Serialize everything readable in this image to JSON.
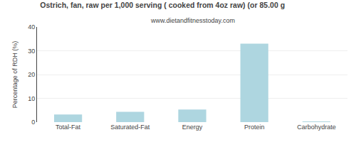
{
  "chart_data": {
    "type": "bar",
    "title": "Ostrich, fan, raw per 1,000 serving ( cooked from 4oz raw) (or 85.00 g",
    "subtitle": "www.dietandfitnesstoday.com",
    "categories": [
      "Total-Fat",
      "Saturated-Fat",
      "Energy",
      "Protein",
      "Carbohydrate"
    ],
    "values": [
      3.2,
      4.3,
      5.3,
      33.0,
      0.1
    ],
    "color": "#aed6e0",
    "ylabel": "Percentage of RDH (%)",
    "ylim": [
      0,
      40
    ],
    "yticks": [
      0,
      10,
      20,
      30,
      40
    ],
    "grid": true
  }
}
